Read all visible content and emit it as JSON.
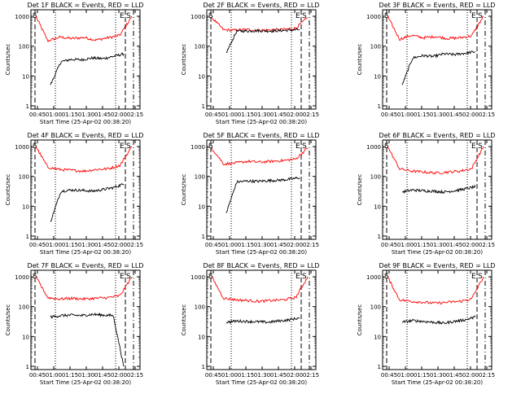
{
  "chart_data": [
    {
      "type": "line",
      "title": "Det 1F BLACK = Events, RED = LLD",
      "xlabel": "Start Time (25-Apr-02 00:38:20)",
      "ylabel": "Counts/sec",
      "yscale": "log",
      "ylim": [
        1,
        1000
      ],
      "xticks": [
        "00:45",
        "01:00",
        "01:15",
        "01:30",
        "01:45",
        "02:00",
        "02:15"
      ],
      "yticks": [
        "1",
        "10",
        "100",
        "1000"
      ],
      "markers": {
        "S_left": "S",
        "E_right": "E",
        "S_right": "S"
      },
      "series": [
        {
          "color": "#ff0000",
          "values": [
            1000,
            150,
            200,
            180,
            195,
            160,
            190,
            230,
            1000
          ]
        },
        {
          "color": "#000000",
          "values": [
            5,
            30,
            36,
            35,
            40,
            38,
            45,
            55
          ]
        }
      ]
    },
    {
      "type": "line",
      "title": "Det 2F BLACK = Events, RED = LLD",
      "xlabel": "Start Time (25-Apr-02 00:38:20)",
      "ylabel": "Counts/sec",
      "yscale": "log",
      "ylim": [
        1,
        1000
      ],
      "xticks": [
        "00:45",
        "01:00",
        "01:15",
        "01:30",
        "01:45",
        "02:00",
        "02:15"
      ],
      "yticks": [
        "1",
        "10",
        "100",
        "1000"
      ],
      "markers": {
        "S_left": "S",
        "E_right": "E",
        "S_right": "S"
      },
      "series": [
        {
          "color": "#ff0000",
          "values": [
            900,
            350,
            340,
            360,
            340,
            350,
            360,
            400,
            900
          ]
        },
        {
          "color": "#000000",
          "values": [
            60,
            320,
            320,
            330,
            320,
            330,
            340,
            360
          ]
        }
      ]
    },
    {
      "type": "line",
      "title": "Det 3F BLACK = Events, RED = LLD",
      "xlabel": "",
      "ylabel": "Counts/sec",
      "yscale": "log",
      "ylim": [
        1,
        1000
      ],
      "xticks": [
        "00:45",
        "01:00",
        "01:15",
        "01:30",
        "01:45",
        "02:00",
        "02:15"
      ],
      "yticks": [
        "1",
        "10",
        "100",
        "1000"
      ],
      "markers": {
        "S_left": "S",
        "E_right": "E",
        "S_right": "S"
      },
      "series": [
        {
          "color": "#ff0000",
          "values": [
            1000,
            170,
            230,
            190,
            210,
            180,
            190,
            220,
            1000
          ]
        },
        {
          "color": "#000000",
          "values": [
            5,
            40,
            48,
            45,
            55,
            52,
            58,
            65
          ]
        }
      ]
    },
    {
      "type": "line",
      "title": "Det 4F BLACK = Events, RED = LLD",
      "xlabel": "Start Time (25-Apr-02 00:38:20)",
      "ylabel": "Counts/sec",
      "yscale": "log",
      "ylim": [
        1,
        1000
      ],
      "xticks": [
        "00:45",
        "01:00",
        "01:15",
        "01:30",
        "01:45",
        "02:00",
        "02:15"
      ],
      "yticks": [
        "1",
        "10",
        "100",
        "1000"
      ],
      "markers": {
        "S_left": "S",
        "E_right": "E",
        "S_right": "S"
      },
      "series": [
        {
          "color": "#ff0000",
          "values": [
            1000,
            200,
            170,
            160,
            150,
            170,
            180,
            230,
            1000
          ]
        },
        {
          "color": "#000000",
          "values": [
            3,
            32,
            35,
            34,
            32,
            36,
            42,
            55
          ]
        }
      ]
    },
    {
      "type": "line",
      "title": "Det 5F BLACK = Events, RED = LLD",
      "xlabel": "Start Time (25-Apr-02 00:38:20)",
      "ylabel": "Counts/sec",
      "yscale": "log",
      "ylim": [
        1,
        1000
      ],
      "xticks": [
        "00:45",
        "01:00",
        "01:15",
        "01:30",
        "01:45",
        "02:00",
        "02:15"
      ],
      "yticks": [
        "1",
        "10",
        "100",
        "1000"
      ],
      "markers": {
        "S_left": "S",
        "E_right": "E",
        "S_right": "S"
      },
      "series": [
        {
          "color": "#ff0000",
          "values": [
            900,
            260,
            280,
            320,
            300,
            320,
            340,
            380,
            900
          ]
        },
        {
          "color": "#000000",
          "values": [
            6,
            65,
            70,
            68,
            72,
            74,
            80,
            90
          ]
        }
      ]
    },
    {
      "type": "line",
      "title": "Det 6F BLACK = Events, RED = LLD",
      "xlabel": "Start Time (25-Apr-02 00:38:20)",
      "ylabel": "Counts/sec",
      "yscale": "log",
      "ylim": [
        1,
        1000
      ],
      "xticks": [
        "00:45",
        "01:00",
        "01:15",
        "01:30",
        "01:45",
        "02:00",
        "02:15"
      ],
      "yticks": [
        "1",
        "10",
        "100",
        "1000"
      ],
      "markers": {
        "S_left": "S",
        "E_right": "E",
        "S_right": "S"
      },
      "series": [
        {
          "color": "#ff0000",
          "values": [
            1000,
            180,
            150,
            140,
            130,
            140,
            150,
            180,
            1000
          ]
        },
        {
          "color": "#000000",
          "values": [
            30,
            35,
            33,
            32,
            30,
            33,
            38,
            45
          ]
        }
      ]
    },
    {
      "type": "line",
      "title": "Det 7F BLACK = Events, RED = LLD",
      "xlabel": "Start Time (25-Apr-02 00:38:20)",
      "ylabel": "Counts/sec",
      "yscale": "log",
      "ylim": [
        1,
        1000
      ],
      "xticks": [
        "00:45",
        "01:00",
        "01:15",
        "01:30",
        "01:45",
        "02:00",
        "02:15"
      ],
      "yticks": [
        "1",
        "10",
        "100",
        "1000"
      ],
      "markers": {
        "S_left": "S",
        "E_right": "E",
        "S_right": "S"
      },
      "series": [
        {
          "color": "#ff0000",
          "values": [
            1000,
            200,
            180,
            190,
            180,
            190,
            200,
            230,
            1000
          ]
        },
        {
          "color": "#000000",
          "values": [
            45,
            50,
            52,
            50,
            55,
            52,
            50,
            1
          ]
        }
      ]
    },
    {
      "type": "line",
      "title": "Det 8F BLACK = Events, RED = LLD",
      "xlabel": "Start Time (25-Apr-02 00:38:20)",
      "ylabel": "Counts/sec",
      "yscale": "log",
      "ylim": [
        1,
        1000
      ],
      "xticks": [
        "00:45",
        "01:00",
        "01:15",
        "01:30",
        "01:45",
        "02:00",
        "02:15"
      ],
      "yticks": [
        "1",
        "10",
        "100",
        "1000"
      ],
      "markers": {
        "S_left": "S",
        "E_right": "E",
        "S_right": "S"
      },
      "series": [
        {
          "color": "#ff0000",
          "values": [
            1000,
            190,
            170,
            160,
            150,
            160,
            170,
            200,
            1000
          ]
        },
        {
          "color": "#000000",
          "values": [
            30,
            33,
            32,
            31,
            30,
            33,
            36,
            42
          ]
        }
      ]
    },
    {
      "type": "line",
      "title": "Det 9F BLACK = Events, RED = LLD",
      "xlabel": "Start Time (25-Apr-02 00:38:20)",
      "ylabel": "Counts/sec",
      "yscale": "log",
      "ylim": [
        1,
        1000
      ],
      "xticks": [
        "00:45",
        "01:00",
        "01:15",
        "01:30",
        "01:45",
        "02:00",
        "02:15"
      ],
      "yticks": [
        "1",
        "10",
        "100",
        "1000"
      ],
      "markers": {
        "S_left": "S",
        "E_right": "E",
        "S_right": "S"
      },
      "series": [
        {
          "color": "#ff0000",
          "values": [
            1000,
            170,
            150,
            140,
            130,
            140,
            150,
            180,
            1000
          ]
        },
        {
          "color": "#000000",
          "values": [
            30,
            34,
            32,
            30,
            28,
            32,
            36,
            45
          ]
        }
      ]
    }
  ]
}
